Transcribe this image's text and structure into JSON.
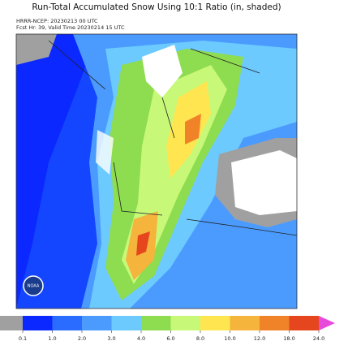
{
  "header": {
    "title": "Run-Total Accumulated Snow Using 10:1 Ratio (in, shaded)",
    "model_line": "HRRR-NCEP: 20230213 00 UTC",
    "valid_line": "Fcst Hr: 39, Valid Time 20230214 15 UTC"
  },
  "colorbar": {
    "under_color": "#a0a0a0",
    "over_color": "#e64bdc",
    "colors": [
      "#0a28ff",
      "#2a6cff",
      "#4b9bff",
      "#6ccaff",
      "#8edc50",
      "#c8f878",
      "#ffe650",
      "#f5b43c",
      "#f08228",
      "#e6461e"
    ],
    "ticks": [
      "0.1",
      "1.0",
      "2.0",
      "3.0",
      "4.0",
      "6.0",
      "8.0",
      "10.0",
      "12.0",
      "18.0",
      "24.0"
    ]
  },
  "logo": {
    "text": "NOAA"
  }
}
